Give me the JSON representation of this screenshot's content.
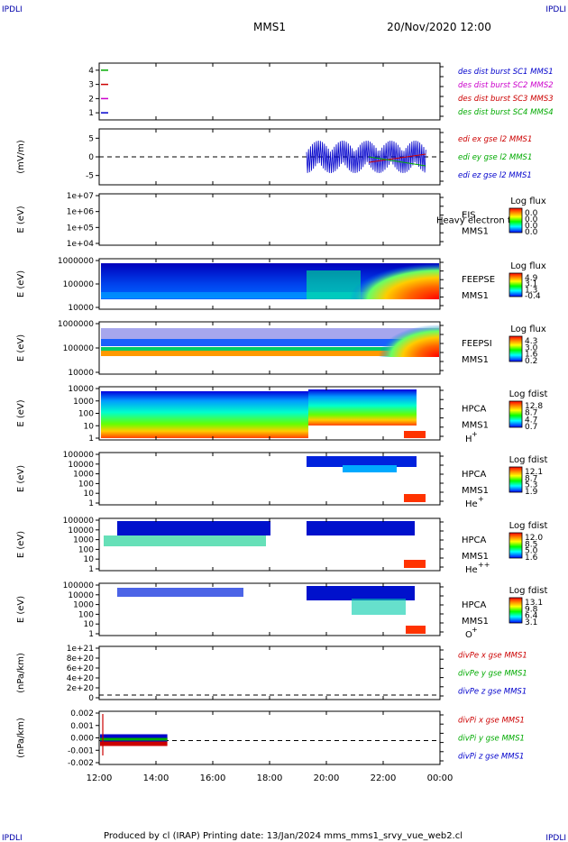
{
  "corners": {
    "top_left": "IPDLI",
    "top_right": "IPDLI",
    "bottom_left": "IPDLI",
    "bottom_right": "IPDLI"
  },
  "header": {
    "title": "MMS1",
    "date": "20/Nov/2020 12:00"
  },
  "footer": {
    "text": "Produced by cl (IRAP)   Printing date: 13/Jan/2024   mms_mms1_srvy_vue_web2.cl"
  },
  "colors": {
    "mms1": "#0000cc",
    "mms2": "#cc00cc",
    "mms3": "#cc0000",
    "mms4": "#00aa00"
  },
  "colorbar_scale": "rainbow-blue-to-red",
  "chart_data": [
    {
      "type": "line",
      "panel": "des-dist-burst",
      "ylim": [
        0.5,
        4.5
      ],
      "yticks": [
        "1",
        "2",
        "3",
        "4"
      ],
      "legend": [
        "des dist burst SC1 MMS1",
        "des dist burst SC2 MMS2",
        "des dist burst SC3 MMS3",
        "des dist burst SC4 MMS4"
      ],
      "legend_colors": [
        "#0000cc",
        "#cc00cc",
        "#cc0000",
        "#00aa00"
      ],
      "levels": [
        1,
        2,
        3,
        4
      ]
    },
    {
      "type": "line",
      "panel": "edi-e-gse",
      "ylabel": "(mV/m)",
      "ylim": [
        -7.5,
        7.5
      ],
      "yticks": [
        "5",
        "0",
        "-5"
      ],
      "legend": [
        "edi ex gse l2 MMS1",
        "edi ey gse l2 MMS1",
        "edi ez gse l2 MMS1"
      ],
      "legend_colors": [
        "#cc0000",
        "#00aa00",
        "#0000cc"
      ],
      "data_start_hour": 19.3,
      "data_end_hour": 23.5
    },
    {
      "type": "heatmap",
      "panel": "eis",
      "ylabel": "E (eV)",
      "yticks": [
        "1e+07",
        "1e+06",
        "1e+05",
        "1e+04"
      ],
      "instrument": "EIS",
      "overlap_label": "Heavy electron to",
      "spacecraft": "MMS1",
      "colorbar_title": "Log flux",
      "colorbar_ticks": [
        "0.0",
        "0.0",
        "0.0",
        "0.0"
      ]
    },
    {
      "type": "heatmap",
      "panel": "feeps-e",
      "ylabel": "E (eV)",
      "yticks": [
        "1000000",
        "100000",
        "10000"
      ],
      "instrument": "FEEPSE",
      "spacecraft": "MMS1",
      "colorbar_title": "Log flux",
      "colorbar_ticks": [
        "4.9",
        "3.1",
        "1.3",
        "-0.4"
      ]
    },
    {
      "type": "heatmap",
      "panel": "feeps-i",
      "ylabel": "E (eV)",
      "yticks": [
        "1000000",
        "100000",
        "10000"
      ],
      "instrument": "FEEPSI",
      "spacecraft": "MMS1",
      "colorbar_title": "Log flux",
      "colorbar_ticks": [
        "4.3",
        "3.0",
        "1.6",
        "0.2"
      ]
    },
    {
      "type": "heatmap",
      "panel": "hpca-h",
      "ylabel": "E (eV)",
      "yticks": [
        "10000",
        "1000",
        "100",
        "10",
        "1"
      ],
      "instrument": "HPCA",
      "spacecraft": "MMS1",
      "species": "H",
      "species_sup": "+",
      "colorbar_title": "Log fdist",
      "colorbar_ticks": [
        "12.8",
        "8.7",
        "4.7",
        "0.7"
      ]
    },
    {
      "type": "heatmap",
      "panel": "hpca-he",
      "ylabel": "E (eV)",
      "yticks": [
        "100000",
        "10000",
        "1000",
        "100",
        "10",
        "1"
      ],
      "instrument": "HPCA",
      "spacecraft": "MMS1",
      "species": "He",
      "species_sup": "+",
      "colorbar_title": "Log fdist",
      "colorbar_ticks": [
        "12.1",
        "8.7",
        "5.3",
        "1.9"
      ]
    },
    {
      "type": "heatmap",
      "panel": "hpca-he2",
      "ylabel": "E (eV)",
      "yticks": [
        "100000",
        "10000",
        "1000",
        "100",
        "10",
        "1"
      ],
      "instrument": "HPCA",
      "spacecraft": "MMS1",
      "species": "He",
      "species_sup": "++",
      "colorbar_title": "Log fdist",
      "colorbar_ticks": [
        "12.0",
        "8.5",
        "5.0",
        "1.6"
      ]
    },
    {
      "type": "heatmap",
      "panel": "hpca-o",
      "ylabel": "E (eV)",
      "yticks": [
        "100000",
        "10000",
        "1000",
        "100",
        "10",
        "1"
      ],
      "instrument": "HPCA",
      "spacecraft": "MMS1",
      "species": "O",
      "species_sup": "+",
      "colorbar_title": "Log fdist",
      "colorbar_ticks": [
        "13.1",
        "9.8",
        "6.4",
        "3.1"
      ]
    },
    {
      "type": "line",
      "panel": "divpe",
      "ylabel": "(nPa/km)",
      "yticks": [
        "1e+21",
        "8e+20",
        "6e+20",
        "4e+20",
        "2e+20",
        "0"
      ],
      "legend": [
        "divPe x gse MMS1",
        "divPe y gse MMS1",
        "divPe z gse MMS1"
      ],
      "legend_colors": [
        "#cc0000",
        "#00aa00",
        "#0000cc"
      ]
    },
    {
      "type": "line",
      "panel": "divpi",
      "ylabel": "(nPa/km)",
      "yticks": [
        "0.002",
        "0.001",
        "0.000",
        "-0.001",
        "-0.002"
      ],
      "legend": [
        "divPi x gse MMS1",
        "divPi y gse MMS1",
        "divPi z gse MMS1"
      ],
      "legend_colors": [
        "#cc0000",
        "#00aa00",
        "#0000cc"
      ],
      "data_start_hour": 12.0,
      "data_end_hour": 14.4
    }
  ],
  "time_axis": {
    "start": "12:00",
    "end": "00:00",
    "ticks": [
      "12:00",
      "14:00",
      "16:00",
      "18:00",
      "20:00",
      "22:00",
      "00:00"
    ]
  }
}
